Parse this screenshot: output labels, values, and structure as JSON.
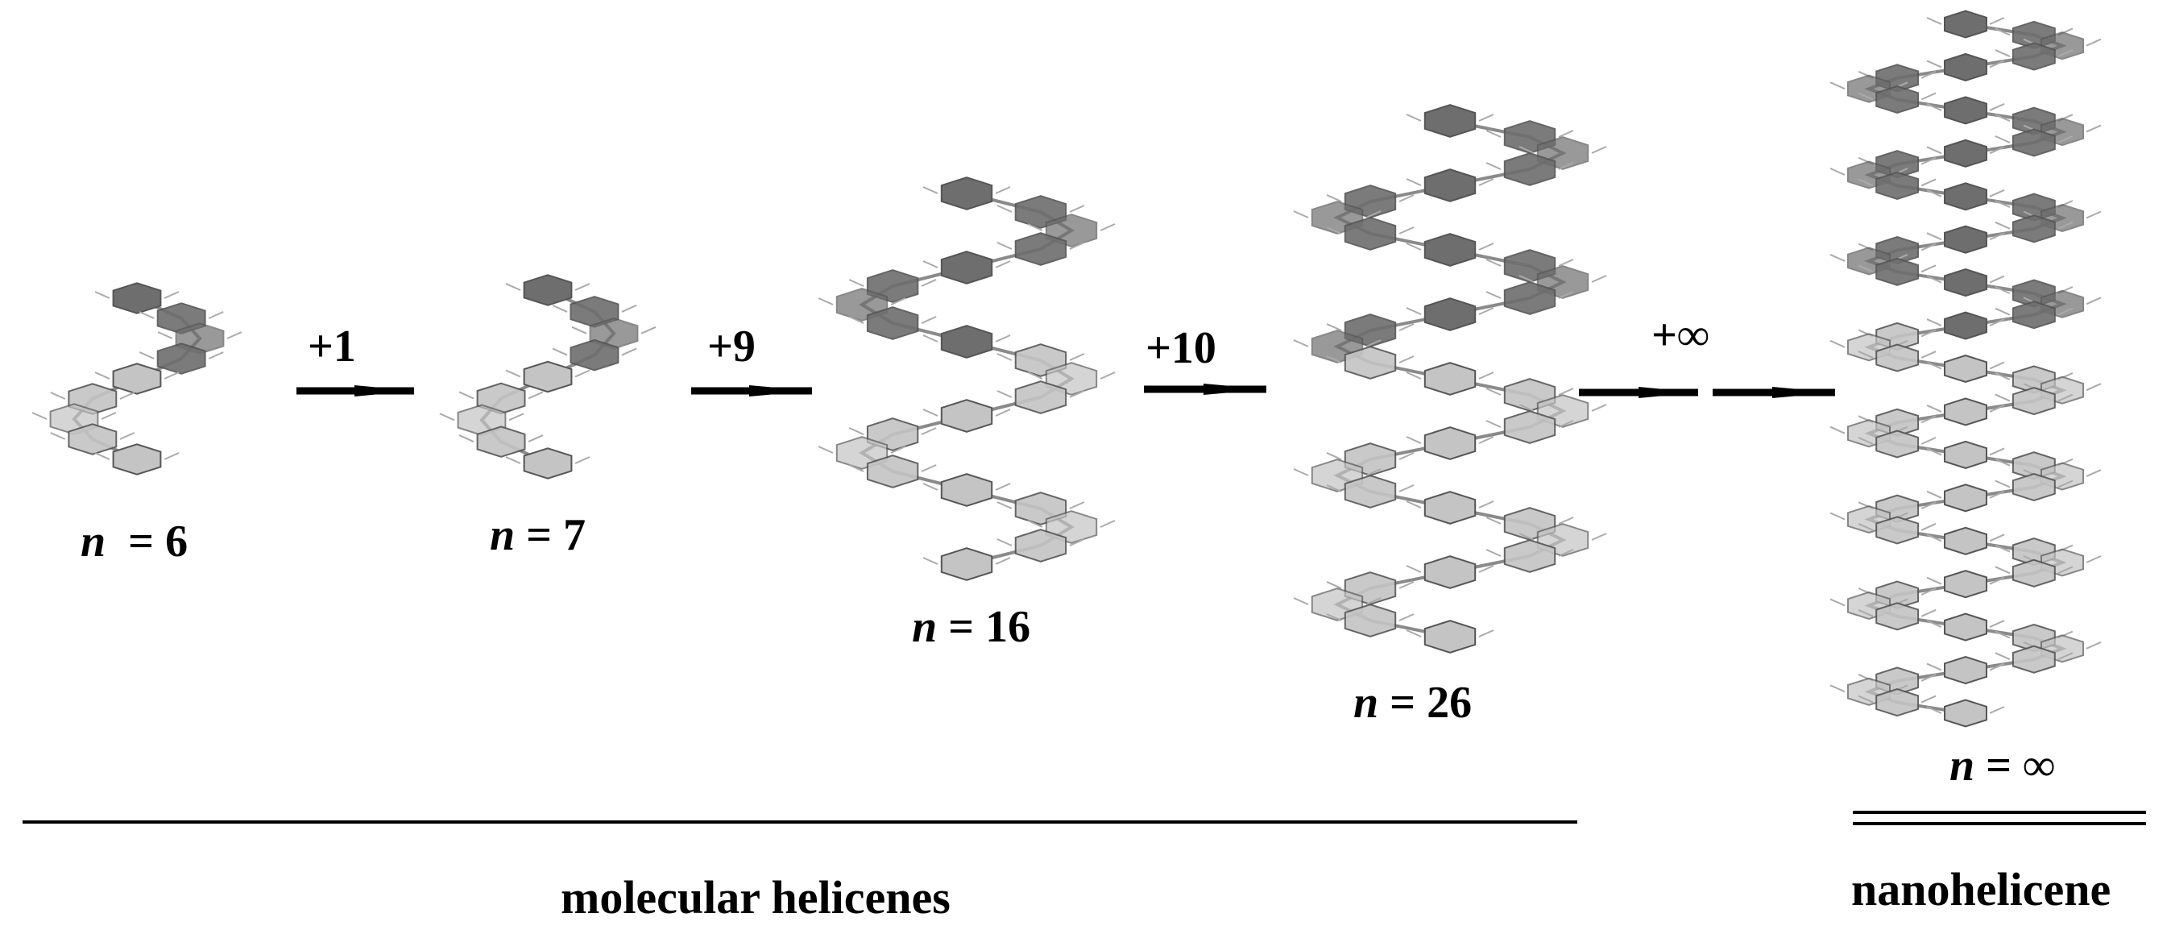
{
  "molecules": [
    {
      "name": "n-6",
      "var": "n",
      "eq": "=",
      "val": "6",
      "turns": 1
    },
    {
      "name": "n-7",
      "var": "n",
      "eq": "=",
      "val": "7",
      "turns": 1
    },
    {
      "name": "n-16",
      "var": "n",
      "eq": "=",
      "val": "16",
      "turns": 2.5
    },
    {
      "name": "n-26",
      "var": "n",
      "eq": "=",
      "val": "26",
      "turns": 4
    },
    {
      "name": "n-infinity",
      "var": "n",
      "eq": "=",
      "val": "∞",
      "turns": 8
    }
  ],
  "steps": [
    "+1",
    "+9",
    "+10",
    "+∞"
  ],
  "groups": {
    "molecular": "molecular helicenes",
    "nano": "nanohelicene"
  },
  "colors": {
    "dark_ring": "#6e6e6e",
    "light_ring": "#c4c4c4",
    "bond": "#8a8a8a",
    "arrow": "#000000"
  }
}
